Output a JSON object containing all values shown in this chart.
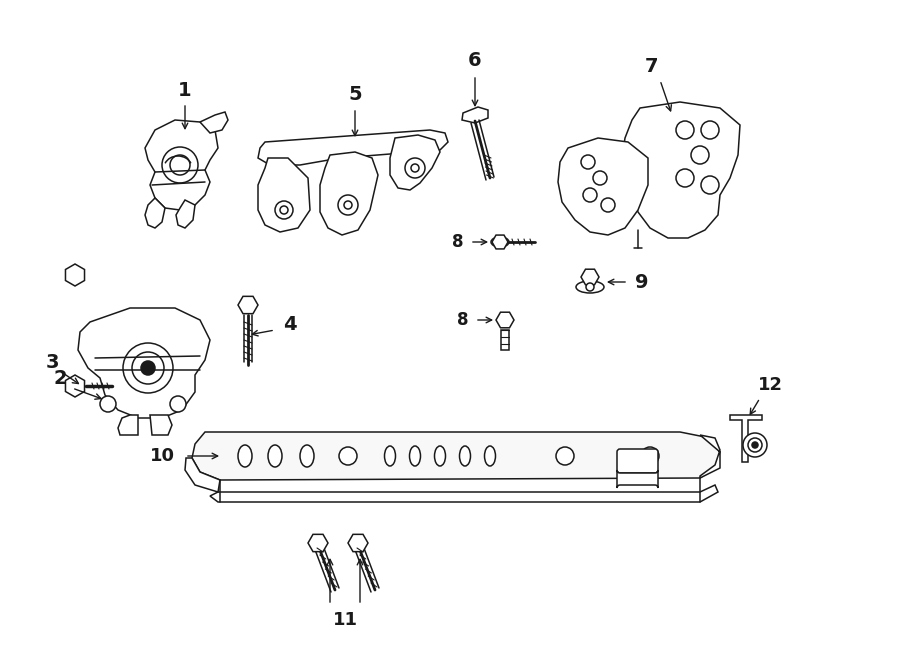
{
  "bg_color": "#ffffff",
  "line_color": "#1a1a1a",
  "lw": 1.1,
  "figsize": [
    9.0,
    6.61
  ],
  "dpi": 100,
  "parts": {
    "label_fontsize": 14
  }
}
